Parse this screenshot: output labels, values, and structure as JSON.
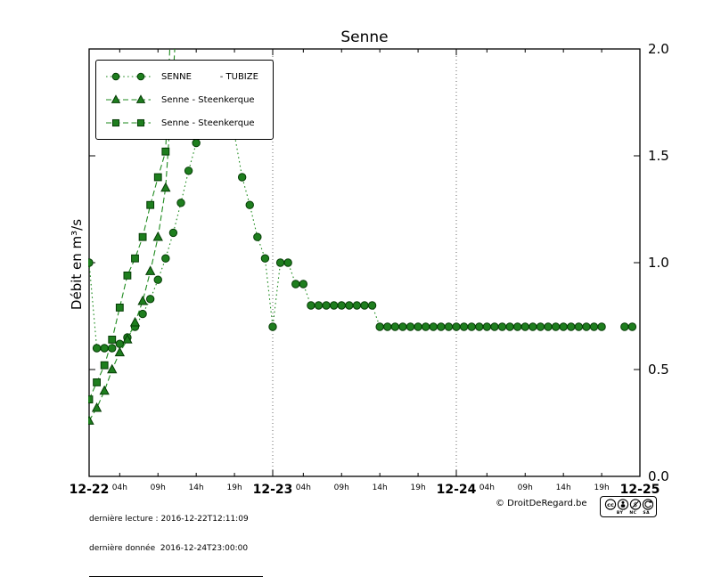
{
  "chart_data": {
    "type": "line",
    "title": "Senne",
    "ylabel": "Débit en m³/s",
    "ylim": [
      0.0,
      2.0
    ],
    "x_total_hours": 72,
    "grid": "vertical-dotted-at-day-boundaries",
    "legend_position": "top-left",
    "yticks": [
      {
        "value": 0.0,
        "label": "0.0"
      },
      {
        "value": 0.5,
        "label": "0.5"
      },
      {
        "value": 1.0,
        "label": "1.0"
      },
      {
        "value": 1.5,
        "label": "1.5"
      },
      {
        "value": 2.0,
        "label": "2.0"
      }
    ],
    "x_major_ticks": [
      {
        "hour": 0,
        "label": "12-22"
      },
      {
        "hour": 24,
        "label": "12-23"
      },
      {
        "hour": 48,
        "label": "12-24"
      },
      {
        "hour": 72,
        "label": "12-25"
      }
    ],
    "x_minor_ticks": [
      {
        "offset": 4,
        "label": "04h"
      },
      {
        "offset": 9,
        "label": "09h"
      },
      {
        "offset": 14,
        "label": "14h"
      },
      {
        "offset": 19,
        "label": "19h"
      }
    ],
    "series": [
      {
        "name": "SENNE          - TUBIZE",
        "marker": "circle",
        "line_style": "dotted",
        "color": "#1f8b1f",
        "marker_fill": "#1e7e1e",
        "marker_edge": "#053c05",
        "start_hour": 0,
        "values": [
          1.0,
          0.6,
          0.6,
          0.6,
          0.62,
          0.65,
          0.7,
          0.76,
          0.83,
          0.92,
          1.02,
          1.14,
          1.28,
          1.43,
          1.56,
          1.66,
          1.72,
          1.68,
          1.62,
          1.6,
          1.4,
          1.27,
          1.12,
          1.02,
          0.7,
          1.0,
          1.0,
          0.9,
          0.9,
          0.8,
          0.8,
          0.8,
          0.8,
          0.8,
          0.8,
          0.8,
          0.8,
          0.8,
          0.7,
          0.7,
          0.7,
          0.7,
          0.7,
          0.7,
          0.7,
          0.7,
          0.7,
          0.7,
          0.7,
          0.7,
          0.7,
          0.7,
          0.7,
          0.7,
          0.7,
          0.7,
          0.7,
          0.7,
          0.7,
          0.7,
          0.7,
          0.7,
          0.7,
          0.7,
          0.7,
          0.7,
          0.7,
          0.7,
          null,
          null,
          0.7,
          0.7
        ]
      },
      {
        "name": "Senne - Steenkerque",
        "marker": "triangle",
        "line_style": "dashed",
        "color": "#1f8b1f",
        "marker_fill": "#1e7e1e",
        "marker_edge": "#053c05",
        "start_hour": 0,
        "values": [
          0.26,
          0.32,
          0.4,
          0.5,
          0.58,
          0.64,
          0.72,
          0.82,
          0.96,
          1.12,
          1.35,
          1.88,
          2.5
        ]
      },
      {
        "name": "Senne - Steenkerque",
        "marker": "square",
        "line_style": "dashed",
        "color": "#1f8b1f",
        "marker_fill": "#1e7e1e",
        "marker_edge": "#053c05",
        "start_hour": 0,
        "values": [
          0.36,
          0.44,
          0.52,
          0.64,
          0.79,
          0.94,
          1.02,
          1.12,
          1.27,
          1.4,
          1.52,
          2.4
        ]
      }
    ]
  },
  "footer": {
    "last_reading": "dernière lecture : 2016-12-22T12:11:09",
    "last_data": "dernière donnée  2016-12-24T23:00:00",
    "copyright": "© DroitDeRegard.be",
    "license_name": "CC BY NC SA",
    "license_parts": [
      "BY",
      "NC",
      "SA"
    ]
  }
}
